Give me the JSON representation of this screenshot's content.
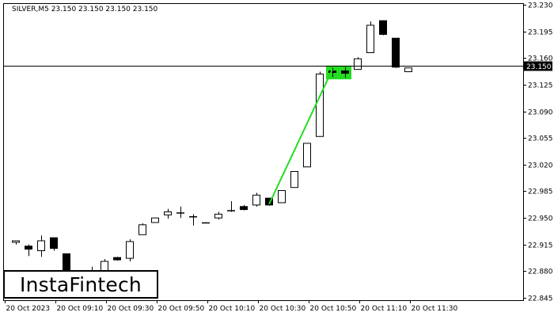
{
  "header": {
    "symbol_info": "SILVER,M5  23.150 23.150 23.150 23.150"
  },
  "logo": {
    "text": "InstaFintech"
  },
  "chart_data": {
    "type": "candlestick",
    "symbol": "SILVER",
    "timeframe": "M5",
    "ylim": [
      22.842,
      23.232
    ],
    "y_ticks": [
      "23.230",
      "23.195",
      "23.160",
      "23.125",
      "23.090",
      "23.055",
      "23.020",
      "22.985",
      "22.950",
      "22.915",
      "22.880",
      "22.845"
    ],
    "x_ticks": [
      "20 Oct 2023",
      "20 Oct 09:10",
      "20 Oct 09:30",
      "20 Oct 09:50",
      "20 Oct 10:10",
      "20 Oct 10:30",
      "20 Oct 10:50",
      "20 Oct 11:10",
      "20 Oct 11:30"
    ],
    "current_price": {
      "value": 23.15,
      "label": "23.150"
    },
    "candles": [
      {
        "o": 22.918,
        "h": 22.92,
        "l": 22.915,
        "c": 22.92
      },
      {
        "o": 22.913,
        "h": 22.915,
        "l": 22.9,
        "c": 22.909
      },
      {
        "o": 22.907,
        "h": 22.927,
        "l": 22.899,
        "c": 22.92
      },
      {
        "o": 22.924,
        "h": 22.924,
        "l": 22.907,
        "c": 22.91
      },
      {
        "o": 22.903,
        "h": 22.903,
        "l": 22.88,
        "c": 22.88
      },
      {
        "o": 22.868,
        "h": 22.874,
        "l": 22.86,
        "c": 22.872
      },
      {
        "o": 22.88,
        "h": 22.886,
        "l": 22.862,
        "c": 22.866
      },
      {
        "o": 22.875,
        "h": 22.896,
        "l": 22.87,
        "c": 22.893
      },
      {
        "o": 22.898,
        "h": 22.899,
        "l": 22.894,
        "c": 22.895
      },
      {
        "o": 22.897,
        "h": 22.922,
        "l": 22.893,
        "c": 22.919
      },
      {
        "o": 22.928,
        "h": 22.943,
        "l": 22.928,
        "c": 22.941
      },
      {
        "o": 22.944,
        "h": 22.95,
        "l": 22.944,
        "c": 22.95
      },
      {
        "o": 22.954,
        "h": 22.962,
        "l": 22.949,
        "c": 22.958
      },
      {
        "o": 22.957,
        "h": 22.965,
        "l": 22.95,
        "c": 22.957
      },
      {
        "o": 22.952,
        "h": 22.955,
        "l": 22.94,
        "c": 22.952
      },
      {
        "o": 22.944,
        "h": 22.944,
        "l": 22.944,
        "c": 22.944
      },
      {
        "o": 22.95,
        "h": 22.958,
        "l": 22.948,
        "c": 22.955
      },
      {
        "o": 22.96,
        "h": 22.972,
        "l": 22.958,
        "c": 22.96
      },
      {
        "o": 22.965,
        "h": 22.967,
        "l": 22.96,
        "c": 22.961
      },
      {
        "o": 22.967,
        "h": 22.983,
        "l": 22.965,
        "c": 22.98
      },
      {
        "o": 22.976,
        "h": 22.976,
        "l": 22.966,
        "c": 22.967
      },
      {
        "o": 22.97,
        "h": 22.986,
        "l": 22.97,
        "c": 22.986
      },
      {
        "o": 22.99,
        "h": 23.011,
        "l": 22.99,
        "c": 23.011
      },
      {
        "o": 23.017,
        "h": 23.048,
        "l": 23.017,
        "c": 23.048
      },
      {
        "o": 23.057,
        "h": 23.142,
        "l": 23.057,
        "c": 23.139
      },
      {
        "o": 23.143,
        "h": 23.147,
        "l": 23.135,
        "c": 23.141
      },
      {
        "o": 23.143,
        "h": 23.148,
        "l": 23.134,
        "c": 23.14
      },
      {
        "o": 23.145,
        "h": 23.161,
        "l": 23.145,
        "c": 23.159
      },
      {
        "o": 23.167,
        "h": 23.208,
        "l": 23.167,
        "c": 23.203
      },
      {
        "o": 23.209,
        "h": 23.209,
        "l": 23.19,
        "c": 23.191
      },
      {
        "o": 23.186,
        "h": 23.186,
        "l": 23.147,
        "c": 23.148
      },
      {
        "o": 23.142,
        "h": 23.147,
        "l": 23.142,
        "c": 23.147
      }
    ],
    "pattern_line": {
      "from": {
        "index": 20,
        "price": 22.968
      },
      "to": {
        "index": 25,
        "price": 23.145
      }
    },
    "pattern_zone": {
      "from_index": 25,
      "to_index": 26,
      "price_low": 23.132,
      "price_high": 23.15
    },
    "colors": {
      "bull_fill": "#ffffff",
      "bear_fill": "#000000",
      "candle_outline": "#000000",
      "pattern_line": "#22dd22",
      "pattern_zone": "#22dd22",
      "price_line": "#000000",
      "price_label_bg": "#000000",
      "price_label_text": "#ffffff",
      "axis": "#000000"
    }
  }
}
